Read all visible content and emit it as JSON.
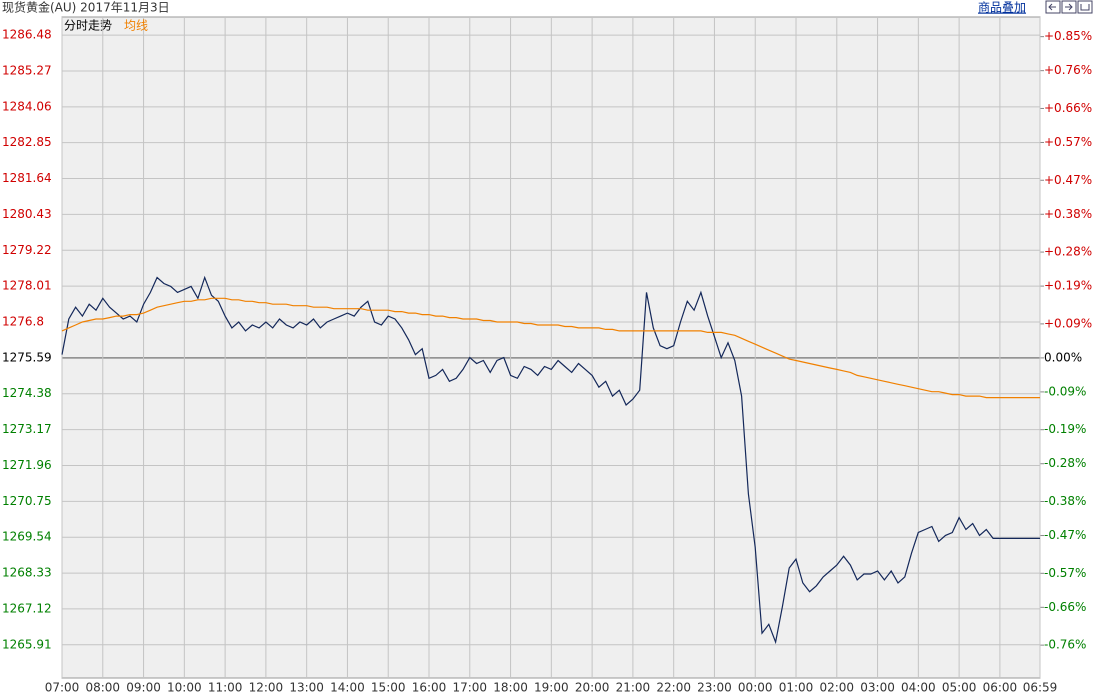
{
  "header": {
    "title": "现货黄金(AU) 2017年11月3日",
    "link": "商品叠加"
  },
  "chart_data": {
    "type": "line",
    "subtitle": "分时走势",
    "x": [
      "07:00",
      "07:10",
      "07:20",
      "07:30",
      "07:40",
      "07:50",
      "08:00",
      "08:10",
      "08:20",
      "08:30",
      "08:40",
      "08:50",
      "09:00",
      "09:10",
      "09:20",
      "09:30",
      "09:40",
      "09:50",
      "10:00",
      "10:10",
      "10:20",
      "10:30",
      "10:40",
      "10:50",
      "11:00",
      "11:10",
      "11:20",
      "11:30",
      "11:40",
      "11:50",
      "12:00",
      "12:10",
      "12:20",
      "12:30",
      "12:40",
      "12:50",
      "13:00",
      "13:10",
      "13:20",
      "13:30",
      "13:40",
      "13:50",
      "14:00",
      "14:10",
      "14:20",
      "14:30",
      "14:40",
      "14:50",
      "15:00",
      "15:10",
      "15:20",
      "15:30",
      "15:40",
      "15:50",
      "16:00",
      "16:10",
      "16:20",
      "16:30",
      "16:40",
      "16:50",
      "17:00",
      "17:10",
      "17:20",
      "17:30",
      "17:40",
      "17:50",
      "18:00",
      "18:10",
      "18:20",
      "18:30",
      "18:40",
      "18:50",
      "19:00",
      "19:10",
      "19:20",
      "19:30",
      "19:40",
      "19:50",
      "20:00",
      "20:10",
      "20:20",
      "20:30",
      "20:40",
      "20:50",
      "21:00",
      "21:10",
      "21:20",
      "21:30",
      "21:40",
      "21:50",
      "22:00",
      "22:10",
      "22:20",
      "22:30",
      "22:40",
      "22:50",
      "23:00",
      "23:10",
      "23:20",
      "23:30",
      "23:40",
      "23:50",
      "00:00",
      "00:10",
      "00:20",
      "00:30",
      "00:40",
      "00:50",
      "01:00",
      "01:10",
      "01:20",
      "01:30",
      "01:40",
      "01:50",
      "02:00",
      "02:10",
      "02:20",
      "02:30",
      "02:40",
      "02:50",
      "03:00",
      "03:10",
      "03:20",
      "03:30",
      "03:40",
      "03:50",
      "04:00",
      "04:10",
      "04:20",
      "04:30",
      "04:40",
      "04:50",
      "05:00",
      "05:10",
      "05:20",
      "05:30",
      "05:40",
      "05:50",
      "06:00",
      "06:10",
      "06:20",
      "06:30",
      "06:40",
      "06:50",
      "06:59"
    ],
    "series": [
      {
        "color": "#14285a",
        "values": [
          1275.7,
          1276.9,
          1277.3,
          1277.0,
          1277.4,
          1277.2,
          1277.6,
          1277.3,
          1277.1,
          1276.9,
          1277.0,
          1276.8,
          1277.4,
          1277.8,
          1278.3,
          1278.1,
          1278.0,
          1277.8,
          1277.9,
          1278.0,
          1277.6,
          1278.3,
          1277.7,
          1277.5,
          1277.0,
          1276.6,
          1276.8,
          1276.5,
          1276.7,
          1276.6,
          1276.8,
          1276.6,
          1276.9,
          1276.7,
          1276.6,
          1276.8,
          1276.7,
          1276.9,
          1276.6,
          1276.8,
          1276.9,
          1277.0,
          1277.1,
          1277.0,
          1277.3,
          1277.5,
          1276.8,
          1276.7,
          1277.0,
          1276.9,
          1276.6,
          1276.2,
          1275.7,
          1275.9,
          1274.9,
          1275.0,
          1275.2,
          1274.8,
          1274.9,
          1275.2,
          1275.6,
          1275.4,
          1275.5,
          1275.1,
          1275.5,
          1275.6,
          1275.0,
          1274.9,
          1275.3,
          1275.2,
          1275.0,
          1275.3,
          1275.2,
          1275.5,
          1275.3,
          1275.1,
          1275.4,
          1275.2,
          1275.0,
          1274.6,
          1274.8,
          1274.3,
          1274.5,
          1274.0,
          1274.2,
          1274.5,
          1277.8,
          1276.6,
          1276.0,
          1275.9,
          1276.0,
          1276.8,
          1277.5,
          1277.2,
          1277.8,
          1277.0,
          1276.3,
          1275.6,
          1276.1,
          1275.5,
          1274.3,
          1271.0,
          1269.2,
          1266.3,
          1266.6,
          1266.0,
          1267.2,
          1268.5,
          1268.8,
          1268.0,
          1267.7,
          1267.9,
          1268.2,
          1268.4,
          1268.6,
          1268.9,
          1268.6,
          1268.1,
          1268.3,
          1268.3,
          1268.4,
          1268.1,
          1268.4,
          1268.0,
          1268.2,
          1269.0,
          1269.7,
          1269.8,
          1269.9,
          1269.4,
          1269.6,
          1269.7,
          1270.2,
          1269.8,
          1270.0,
          1269.6,
          1269.8,
          1269.5,
          1269.5,
          1269.5,
          1269.5,
          1269.5,
          1269.5,
          1269.5,
          1269.5
        ]
      },
      {
        "name": "均线",
        "color": "#f08000",
        "values": [
          1276.5,
          1276.6,
          1276.7,
          1276.8,
          1276.85,
          1276.9,
          1276.9,
          1276.95,
          1277.0,
          1277.0,
          1277.05,
          1277.05,
          1277.1,
          1277.2,
          1277.3,
          1277.35,
          1277.4,
          1277.45,
          1277.5,
          1277.5,
          1277.55,
          1277.55,
          1277.6,
          1277.6,
          1277.6,
          1277.55,
          1277.55,
          1277.5,
          1277.5,
          1277.45,
          1277.45,
          1277.4,
          1277.4,
          1277.4,
          1277.35,
          1277.35,
          1277.35,
          1277.3,
          1277.3,
          1277.3,
          1277.25,
          1277.25,
          1277.25,
          1277.25,
          1277.25,
          1277.2,
          1277.2,
          1277.2,
          1277.2,
          1277.15,
          1277.15,
          1277.1,
          1277.1,
          1277.05,
          1277.05,
          1277.0,
          1277.0,
          1276.95,
          1276.95,
          1276.9,
          1276.9,
          1276.9,
          1276.85,
          1276.85,
          1276.8,
          1276.8,
          1276.8,
          1276.8,
          1276.75,
          1276.75,
          1276.7,
          1276.7,
          1276.7,
          1276.7,
          1276.65,
          1276.65,
          1276.6,
          1276.6,
          1276.6,
          1276.6,
          1276.55,
          1276.55,
          1276.5,
          1276.5,
          1276.5,
          1276.5,
          1276.5,
          1276.5,
          1276.5,
          1276.5,
          1276.5,
          1276.5,
          1276.5,
          1276.5,
          1276.5,
          1276.45,
          1276.45,
          1276.45,
          1276.4,
          1276.35,
          1276.25,
          1276.15,
          1276.05,
          1275.95,
          1275.85,
          1275.75,
          1275.65,
          1275.55,
          1275.5,
          1275.45,
          1275.4,
          1275.35,
          1275.3,
          1275.25,
          1275.2,
          1275.15,
          1275.1,
          1275.0,
          1274.95,
          1274.9,
          1274.85,
          1274.8,
          1274.75,
          1274.7,
          1274.65,
          1274.6,
          1274.55,
          1274.5,
          1274.45,
          1274.45,
          1274.4,
          1274.35,
          1274.35,
          1274.3,
          1274.3,
          1274.3,
          1274.25,
          1274.25,
          1274.25,
          1274.25,
          1274.25,
          1274.25,
          1274.25,
          1274.25,
          1274.25
        ]
      }
    ],
    "xlim": [
      "07:00",
      "06:59"
    ],
    "xticks": [
      "07:00",
      "08:00",
      "09:00",
      "10:00",
      "11:00",
      "12:00",
      "13:00",
      "14:00",
      "15:00",
      "16:00",
      "17:00",
      "18:00",
      "19:00",
      "20:00",
      "21:00",
      "22:00",
      "23:00",
      "00:00",
      "01:00",
      "02:00",
      "03:00",
      "04:00",
      "05:00",
      "06:00",
      "06:59"
    ],
    "ylim": [
      1264.79,
      1287.09
    ],
    "yticks": [
      1286.48,
      1285.27,
      1284.06,
      1282.85,
      1281.64,
      1280.43,
      1279.22,
      1278.01,
      1276.8,
      1275.59,
      1274.38,
      1273.17,
      1271.96,
      1270.75,
      1269.54,
      1268.33,
      1267.12,
      1265.91
    ],
    "y2lim": [
      -0.847,
      0.902
    ],
    "y2ticks": [
      {
        "value": 0.85,
        "label": "+0.85%"
      },
      {
        "value": 0.76,
        "label": "+0.76%"
      },
      {
        "value": 0.66,
        "label": "+0.66%"
      },
      {
        "value": 0.57,
        "label": "+0.57%"
      },
      {
        "value": 0.47,
        "label": "+0.47%"
      },
      {
        "value": 0.38,
        "label": "+0.38%"
      },
      {
        "value": 0.28,
        "label": "+0.28%"
      },
      {
        "value": 0.19,
        "label": "+0.19%"
      },
      {
        "value": 0.09,
        "label": "+0.09%"
      },
      {
        "value": 0,
        "label": "0.00%"
      },
      {
        "value": -0.09,
        "label": "-0.09%"
      },
      {
        "value": -0.19,
        "label": "-0.19%"
      },
      {
        "value": -0.28,
        "label": "-0.28%"
      },
      {
        "value": -0.38,
        "label": "-0.38%"
      },
      {
        "value": -0.47,
        "label": "-0.47%"
      },
      {
        "value": -0.57,
        "label": "-0.57%"
      },
      {
        "value": -0.66,
        "label": "-0.66%"
      },
      {
        "value": -0.76,
        "label": "-0.76%"
      }
    ],
    "grid": true
  }
}
